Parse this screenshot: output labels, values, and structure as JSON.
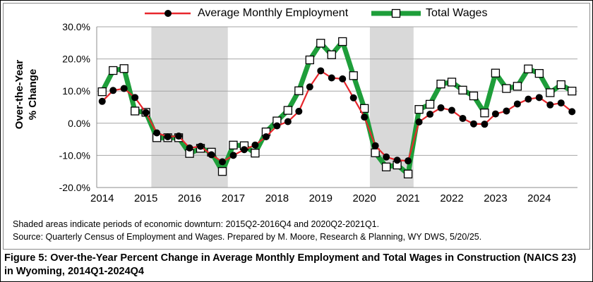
{
  "chart_data": {
    "type": "line",
    "title": "",
    "ylabel_line1": "Over-the-Year",
    "ylabel_line2": "% Change",
    "xlabel": "",
    "ylim": [
      -20,
      30
    ],
    "y_ticks": [
      "-20.0%",
      "-10.0%",
      "0.0%",
      "10.0%",
      "20.0%",
      "30.0%"
    ],
    "y_tick_values": [
      -20,
      -10,
      0,
      10,
      20,
      30
    ],
    "x_year_labels": [
      "2014",
      "2015",
      "2016",
      "2017",
      "2018",
      "2019",
      "2020",
      "2021",
      "2022",
      "2023",
      "2024"
    ],
    "x": [
      "2014Q1",
      "2014Q2",
      "2014Q3",
      "2014Q4",
      "2015Q1",
      "2015Q2",
      "2015Q3",
      "2015Q4",
      "2016Q1",
      "2016Q2",
      "2016Q3",
      "2016Q4",
      "2017Q1",
      "2017Q2",
      "2017Q3",
      "2017Q4",
      "2018Q1",
      "2018Q2",
      "2018Q3",
      "2018Q4",
      "2019Q1",
      "2019Q2",
      "2019Q3",
      "2019Q4",
      "2020Q1",
      "2020Q2",
      "2020Q3",
      "2020Q4",
      "2021Q1",
      "2021Q2",
      "2021Q3",
      "2021Q4",
      "2022Q1",
      "2022Q2",
      "2022Q3",
      "2022Q4",
      "2023Q1",
      "2023Q2",
      "2023Q3",
      "2023Q4",
      "2024Q1",
      "2024Q2",
      "2024Q3",
      "2024Q4"
    ],
    "shaded_periods": [
      [
        "2015Q2",
        "2016Q4"
      ],
      [
        "2020Q2",
        "2021Q1"
      ]
    ],
    "grid": true,
    "legend_position": "top",
    "series": [
      {
        "name": "Average Monthly Employment",
        "color": "#e8262c",
        "marker": "filled-circle",
        "values": [
          6.8,
          10.2,
          10.8,
          8.0,
          3.3,
          -3.0,
          -4.2,
          -4.0,
          -7.7,
          -7.2,
          -9.8,
          -12.0,
          -10.0,
          -8.2,
          -6.8,
          -4.2,
          -0.8,
          0.5,
          3.7,
          11.3,
          16.3,
          14.1,
          13.8,
          7.9,
          1.9,
          -7.0,
          -10.5,
          -11.5,
          -11.7,
          0.4,
          2.8,
          4.8,
          4.0,
          1.5,
          -0.2,
          -0.3,
          2.9,
          3.8,
          6.0,
          7.5,
          8.0,
          5.7,
          6.3,
          3.6
        ]
      },
      {
        "name": "Total Wages",
        "color": "#1e9e3a",
        "marker": "open-square",
        "values": [
          9.8,
          16.4,
          17.0,
          3.8,
          3.4,
          -4.5,
          -4.5,
          -4.5,
          -9.4,
          -7.8,
          -9.0,
          -15.0,
          -6.8,
          -7.0,
          -9.3,
          -2.7,
          0.7,
          4.0,
          10.1,
          19.7,
          24.9,
          21.3,
          25.4,
          14.8,
          4.6,
          -9.2,
          -13.6,
          -13.0,
          -15.8,
          4.3,
          5.9,
          12.2,
          12.8,
          10.3,
          8.5,
          3.2,
          15.6,
          10.8,
          11.5,
          16.9,
          15.5,
          9.5,
          12.0,
          10.0
        ]
      }
    ]
  },
  "notes": {
    "line1": "Shaded areas indicate periods of economic downturn: 2015Q2-2016Q4 and 2020Q2-2021Q1.",
    "line2": "Source: Quarterly Census of Employment and Wages. Prepared by M. Moore, Research & Planning, WY DWS, 5/20/25."
  },
  "caption": "Figure 5: Over-the-Year Percent Change in Average Monthly Employment and Total Wages in Construction (NAICS 23) in Wyoming, 2014Q1-2024Q4"
}
